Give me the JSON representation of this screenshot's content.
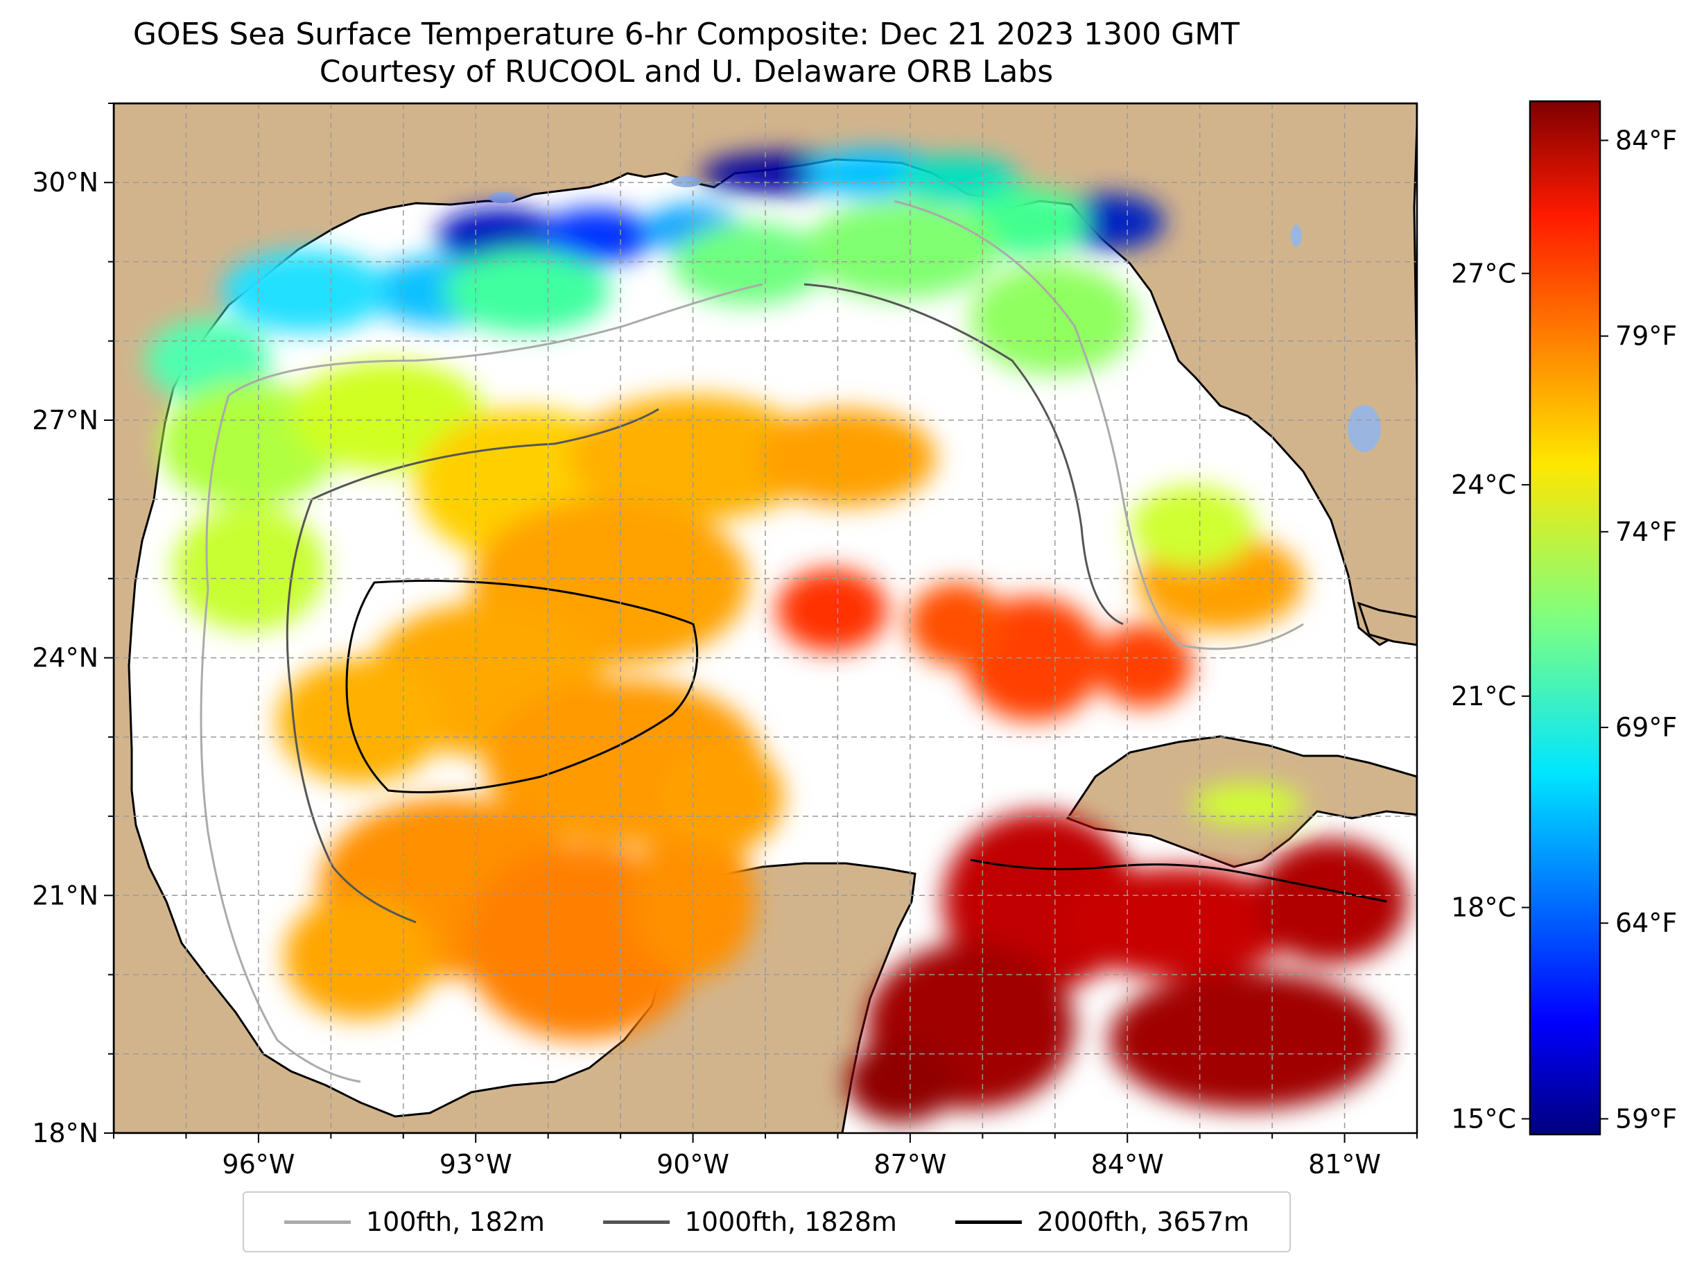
{
  "title": {
    "line1": "GOES Sea Surface Temperature 6-hr Composite: Dec 21 2023 1300 GMT",
    "line2": "Courtesy of RUCOOL and U. Delaware ORB Labs"
  },
  "map": {
    "lon_range": [
      -98.0,
      -80.0
    ],
    "lat_range": [
      18.0,
      31.0
    ],
    "lon_ticks": [
      {
        "value": -96,
        "label": "96°W"
      },
      {
        "value": -93,
        "label": "93°W"
      },
      {
        "value": -90,
        "label": "90°W"
      },
      {
        "value": -87,
        "label": "87°W"
      },
      {
        "value": -84,
        "label": "84°W"
      },
      {
        "value": -81,
        "label": "81°W"
      }
    ],
    "lat_ticks": [
      {
        "value": 18,
        "label": "18°N"
      },
      {
        "value": 21,
        "label": "21°N"
      },
      {
        "value": 24,
        "label": "24°N"
      },
      {
        "value": 27,
        "label": "27°N"
      },
      {
        "value": 30,
        "label": "30°N"
      }
    ],
    "gridlines": true,
    "colors": {
      "land": "#d2b48c",
      "lakes": "#9ab6e0",
      "no_data": "#ffffff"
    }
  },
  "colorbar": {
    "colormap": "jet",
    "range_f": [
      58.6,
      85.0
    ],
    "celsius_ticks": [
      {
        "value_f": 59.0,
        "label": "15°C"
      },
      {
        "value_f": 64.4,
        "label": "18°C"
      },
      {
        "value_f": 69.8,
        "label": "21°C"
      },
      {
        "value_f": 75.2,
        "label": "24°C"
      },
      {
        "value_f": 80.6,
        "label": "27°C"
      }
    ],
    "fahrenheit_ticks": [
      {
        "value_f": 59,
        "label": "59°F"
      },
      {
        "value_f": 64,
        "label": "64°F"
      },
      {
        "value_f": 69,
        "label": "69°F"
      },
      {
        "value_f": 74,
        "label": "74°F"
      },
      {
        "value_f": 79,
        "label": "79°F"
      },
      {
        "value_f": 84,
        "label": "84°F"
      }
    ]
  },
  "legend": {
    "items": [
      {
        "label": "100fth, 182m",
        "color": "#aaaaaa"
      },
      {
        "label": "1000fth, 1828m",
        "color": "#555555"
      },
      {
        "label": "2000fth, 3657m",
        "color": "#000000"
      }
    ]
  }
}
